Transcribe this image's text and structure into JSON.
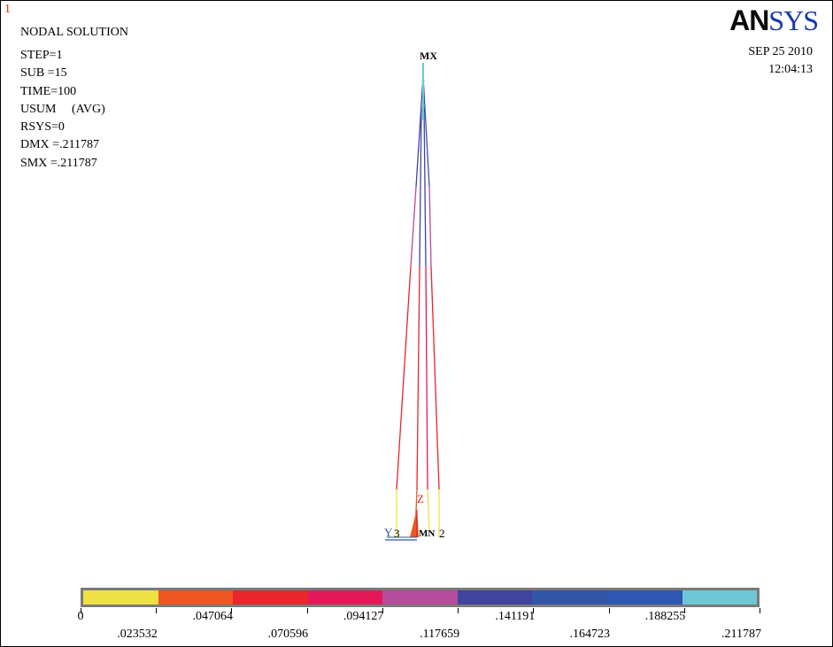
{
  "window": {
    "number": "1"
  },
  "header": {
    "title": "NODAL SOLUTION",
    "info": [
      "STEP=1",
      "SUB =15",
      "TIME=100",
      "USUM     (AVG)",
      "RSYS=0",
      "DMX =.211787",
      "SMX =.211787"
    ]
  },
  "brand": {
    "logo_bold": "AN",
    "logo_serif": "SYS",
    "date": "SEP 25 2010",
    "time": "12:04:13"
  },
  "plot": {
    "max_label": "MX",
    "axis_z": "Z",
    "axis_y": "Y",
    "node_labels": [
      "3",
      "MN",
      "2"
    ]
  },
  "legend": {
    "colors": [
      "#eee144",
      "#ee5722",
      "#e8262b",
      "#e3195a",
      "#b54b9d",
      "#40449c",
      "#3355a8",
      "#2f58b2",
      "#6cc8d6"
    ],
    "upper_labels": [
      "0",
      ".047064",
      ".094127",
      ".141191",
      ".188255"
    ],
    "lower_labels": [
      ".023532",
      ".070596",
      ".117659",
      ".164723",
      ".211787"
    ]
  }
}
